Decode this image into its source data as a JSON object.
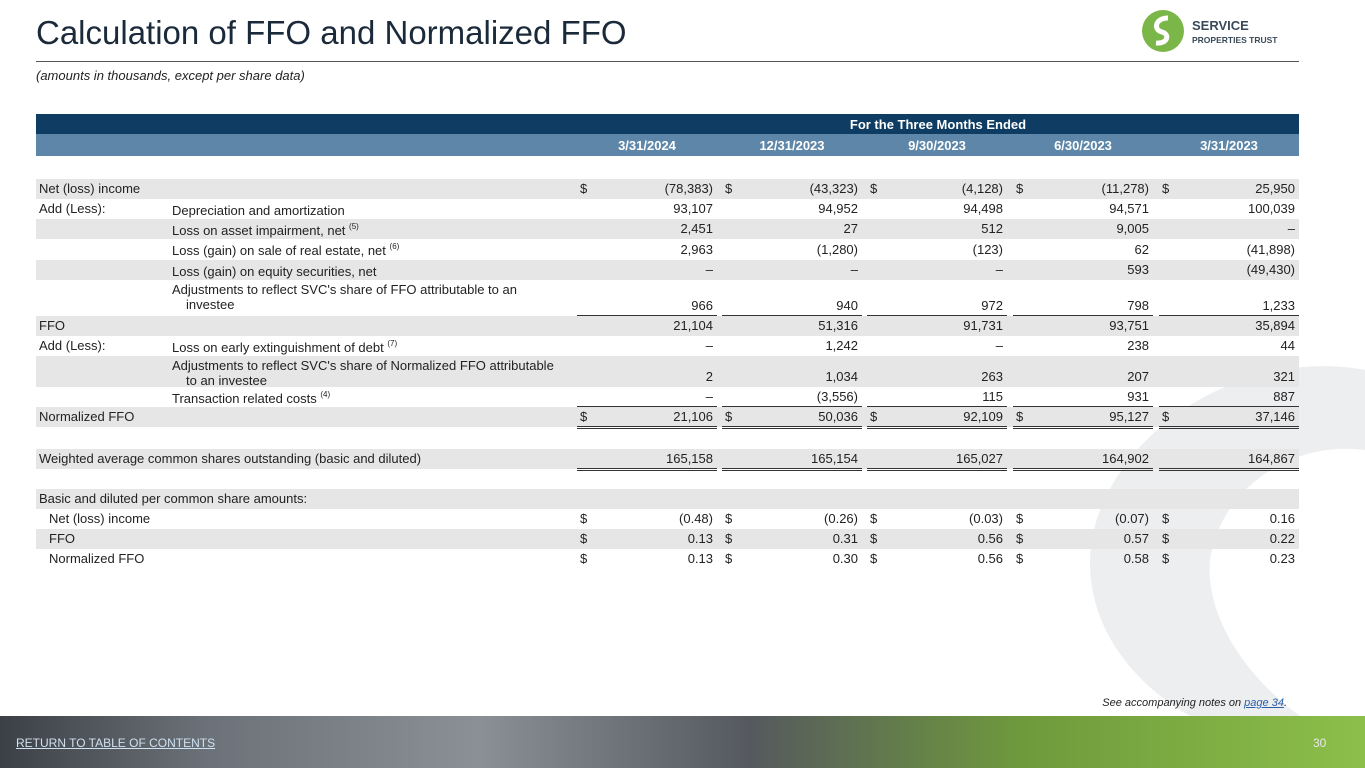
{
  "header": {
    "title": "Calculation of FFO and Normalized FFO",
    "subtitle": "(amounts in thousands, except per share data)",
    "logo": {
      "line1": "SERVICE",
      "line2": "PROPERTIES TRUST"
    }
  },
  "table": {
    "group_header": "For the Three Months Ended",
    "currency": "$",
    "columns": [
      "3/31/2024",
      "12/31/2023",
      "9/30/2023",
      "6/30/2023",
      "3/31/2023"
    ],
    "rows": [
      {
        "label": "Net (loss) income",
        "dollar": true,
        "values": [
          "(78,383)",
          "(43,323)",
          "(4,128)",
          "(11,278)",
          "25,950"
        ]
      },
      {
        "label": "Add (Less):",
        "sublabel": "Depreciation and amortization",
        "values": [
          "93,107",
          "94,952",
          "94,498",
          "94,571",
          "100,039"
        ]
      },
      {
        "sublabel": "Loss on asset impairment, net",
        "note": "(5)",
        "values": [
          "2,451",
          "27",
          "512",
          "9,005",
          "–"
        ]
      },
      {
        "sublabel": "Loss (gain) on sale of real estate, net",
        "note": "(6)",
        "values": [
          "2,963",
          "(1,280)",
          "(123)",
          "62",
          "(41,898)"
        ]
      },
      {
        "sublabel": "Loss (gain) on equity securities, net",
        "values": [
          "–",
          "–",
          "–",
          "593",
          "(49,430)"
        ]
      },
      {
        "sublabel": "Adjustments to reflect SVC's share of FFO attributable to an investee",
        "values": [
          "966",
          "940",
          "972",
          "798",
          "1,233"
        ]
      },
      {
        "label": "FFO",
        "values": [
          "21,104",
          "51,316",
          "91,731",
          "93,751",
          "35,894"
        ]
      },
      {
        "label": "Add (Less):",
        "sublabel": "Loss on early extinguishment of debt",
        "note": "(7)",
        "values": [
          "–",
          "1,242",
          "–",
          "238",
          "44"
        ]
      },
      {
        "sublabel": "Adjustments to reflect SVC's share of Normalized FFO attributable to an investee",
        "values": [
          "2",
          "1,034",
          "263",
          "207",
          "321"
        ]
      },
      {
        "sublabel": "Transaction related costs",
        "note": "(4)",
        "values": [
          "–",
          "(3,556)",
          "115",
          "931",
          "887"
        ]
      },
      {
        "label": "Normalized FFO",
        "dollar": true,
        "values": [
          "21,106",
          "50,036",
          "92,109",
          "95,127",
          "37,146"
        ]
      },
      {
        "label": "Weighted average common shares outstanding (basic and diluted)",
        "values": [
          "165,158",
          "165,154",
          "165,027",
          "164,902",
          "164,867"
        ]
      },
      {
        "label": "Basic and diluted per common share amounts:"
      },
      {
        "label": "Net (loss) income",
        "indent": true,
        "dollar": true,
        "values": [
          "(0.48)",
          "(0.26)",
          "(0.03)",
          "(0.07)",
          "0.16"
        ]
      },
      {
        "label": "FFO",
        "indent": true,
        "dollar": true,
        "values": [
          "0.13",
          "0.31",
          "0.56",
          "0.57",
          "0.22"
        ]
      },
      {
        "label": "Normalized FFO",
        "indent": true,
        "dollar": true,
        "values": [
          "0.13",
          "0.30",
          "0.56",
          "0.58",
          "0.23"
        ]
      }
    ]
  },
  "footer": {
    "note_prefix": "See accompanying notes on ",
    "note_link": "page 34",
    "note_suffix": ".",
    "return_link": "RETURN TO TABLE OF CONTENTS",
    "page_number": "30"
  }
}
